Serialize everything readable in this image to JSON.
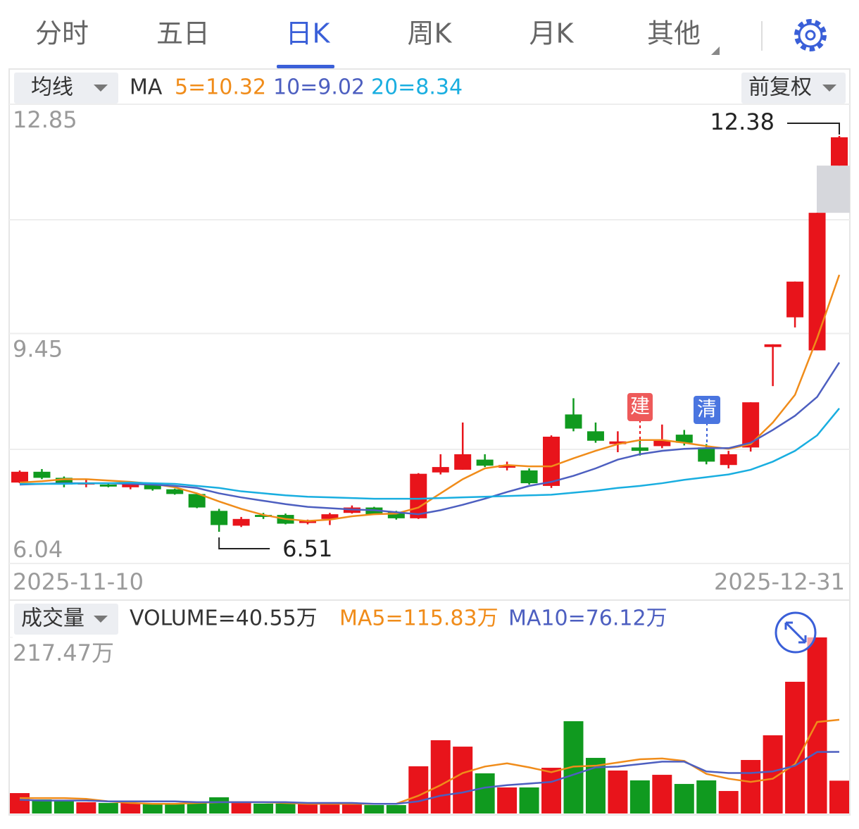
{
  "header": {
    "tabs": [
      "分时",
      "五日",
      "日K",
      "周K",
      "月K",
      "其他"
    ]
  },
  "chart_data": {
    "type": "candlestick",
    "ma_button": "均线",
    "adjust_button": "前复权",
    "ma_prefix": "MA",
    "categories": [
      "2025-11-10",
      null,
      null,
      null,
      null,
      null,
      null,
      null,
      null,
      null,
      null,
      null,
      null,
      null,
      null,
      null,
      null,
      null,
      null,
      null,
      null,
      null,
      null,
      null,
      null,
      null,
      null,
      null,
      null,
      null,
      null,
      null,
      null,
      null,
      null,
      null,
      null,
      "2025-12-31"
    ],
    "open": [
      7.24,
      7.4,
      7.31,
      7.21,
      7.21,
      7.17,
      7.21,
      7.14,
      7.07,
      6.82,
      6.6,
      6.76,
      6.76,
      6.64,
      6.7,
      6.79,
      6.87,
      6.8,
      6.71,
      7.39,
      7.43,
      7.58,
      7.46,
      7.42,
      7.19,
      8.25,
      8.0,
      7.81,
      7.76,
      7.78,
      7.95,
      7.76,
      7.5,
      7.76,
      9.25,
      9.69,
      9.2,
      11.94
    ],
    "high": [
      7.42,
      7.44,
      7.33,
      7.29,
      7.23,
      7.25,
      7.23,
      7.15,
      7.08,
      6.85,
      6.73,
      6.79,
      6.78,
      6.69,
      6.79,
      6.9,
      6.88,
      6.82,
      7.38,
      7.66,
      8.13,
      7.66,
      7.55,
      7.45,
      7.94,
      8.49,
      8.13,
      8.0,
      7.87,
      8.1,
      8.02,
      7.81,
      7.71,
      8.43,
      9.29,
      10.22,
      11.24,
      12.38
    ],
    "low": [
      7.23,
      7.29,
      7.17,
      7.17,
      7.17,
      7.14,
      7.12,
      7.06,
      6.86,
      6.51,
      6.58,
      6.7,
      6.62,
      6.62,
      6.61,
      6.78,
      6.76,
      6.69,
      6.7,
      7.36,
      7.43,
      7.47,
      7.42,
      7.21,
      7.16,
      8.0,
      7.83,
      7.69,
      7.64,
      7.75,
      7.79,
      7.51,
      7.45,
      7.7,
      8.67,
      9.54,
      9.2,
      11.94
    ],
    "close": [
      7.4,
      7.31,
      7.21,
      7.24,
      7.18,
      7.23,
      7.14,
      7.07,
      6.87,
      6.61,
      6.7,
      6.73,
      6.63,
      6.67,
      6.77,
      6.87,
      6.77,
      6.71,
      7.37,
      7.47,
      7.66,
      7.49,
      7.5,
      7.23,
      7.92,
      8.04,
      7.86,
      7.85,
      7.71,
      7.86,
      7.83,
      7.55,
      7.66,
      8.43,
      9.29,
      10.22,
      11.24,
      12.36
    ],
    "up_color": "#e8141b",
    "down_color": "#109a1f",
    "ma_lines": [
      {
        "label": "5=10.32",
        "color": "#f08c1a",
        "values": [
          7.24,
          7.26,
          7.29,
          7.29,
          7.27,
          7.25,
          7.22,
          7.17,
          7.08,
          6.96,
          6.85,
          6.76,
          6.7,
          6.67,
          6.69,
          6.74,
          6.77,
          6.78,
          6.87,
          7.08,
          7.29,
          7.45,
          7.5,
          7.48,
          7.48,
          7.6,
          7.71,
          7.81,
          7.87,
          7.87,
          7.83,
          7.78,
          7.74,
          7.81,
          8.13,
          8.54,
          9.38,
          10.32
        ]
      },
      {
        "label": "10=9.02",
        "color": "#4d5fc0",
        "values": [
          7.21,
          7.22,
          7.23,
          7.23,
          7.23,
          7.22,
          7.21,
          7.19,
          7.16,
          7.08,
          7.02,
          6.97,
          6.92,
          6.88,
          6.86,
          6.84,
          6.83,
          6.8,
          6.77,
          6.83,
          6.91,
          7.0,
          7.1,
          7.19,
          7.25,
          7.34,
          7.45,
          7.58,
          7.66,
          7.71,
          7.74,
          7.75,
          7.75,
          7.83,
          8.02,
          8.23,
          8.51,
          9.02
        ]
      },
      {
        "label": "20=8.34",
        "color": "#19aee0",
        "values": [
          7.22,
          7.22,
          7.22,
          7.23,
          7.23,
          7.24,
          7.23,
          7.22,
          7.19,
          7.16,
          7.11,
          7.08,
          7.05,
          7.03,
          7.02,
          7.01,
          7.0,
          7.0,
          7.0,
          7.01,
          7.02,
          7.03,
          7.04,
          7.05,
          7.06,
          7.09,
          7.12,
          7.16,
          7.19,
          7.23,
          7.28,
          7.32,
          7.36,
          7.43,
          7.55,
          7.71,
          7.94,
          8.34
        ]
      }
    ],
    "ylim": [
      6.04,
      12.85
    ],
    "yticks": [
      12.85,
      9.45,
      6.04
    ],
    "high_label": "12.38",
    "low_label": "6.51",
    "signals": [
      "建",
      "清"
    ],
    "volume": {
      "button": "成交量",
      "label": "VOLUME=40.55万",
      "values": [
        25.2,
        17.4,
        16.5,
        13.9,
        13.0,
        13.0,
        13.0,
        13.0,
        13.0,
        20.0,
        13.0,
        12.2,
        12.2,
        12.2,
        12.2,
        12.2,
        10.4,
        10.4,
        58.3,
        90.5,
        82.6,
        49.6,
        32.2,
        32.2,
        56.5,
        114.0,
        68.7,
        53.1,
        40.9,
        47.8,
        36.5,
        40.9,
        27.8,
        66.1,
        96.6,
        162.7,
        217.47,
        40.55
      ],
      "ma_lines": [
        {
          "label": "MA5=115.83万",
          "color": "#f08c1a",
          "values": [
            19,
            19,
            19,
            18,
            15,
            13,
            12,
            12,
            13,
            14,
            14,
            14,
            13,
            12,
            12,
            12,
            12,
            12,
            22,
            35,
            50,
            58,
            62,
            57,
            51,
            58,
            59,
            63,
            67,
            68,
            65,
            49,
            43,
            39,
            43,
            61,
            113,
            115.83
          ]
        },
        {
          "label": "MA10=76.12万",
          "color": "#4d5fc0",
          "values": [
            17,
            16,
            16,
            16,
            15,
            15,
            15,
            15,
            14,
            14,
            14,
            14,
            14,
            13,
            13,
            13,
            12,
            12,
            15,
            22,
            26,
            32,
            35,
            37,
            39,
            48,
            57,
            58,
            61,
            64,
            64,
            52,
            50,
            50,
            52,
            59,
            76,
            76.12
          ]
        }
      ],
      "ylim": [
        0,
        217.47
      ],
      "yticks": [
        {
          "value": 217.47,
          "label": "217.47万"
        }
      ]
    }
  }
}
